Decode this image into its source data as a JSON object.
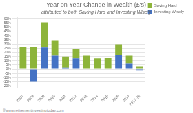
{
  "chart_data": {
    "type": "bar",
    "title": "Year on Year Change in Wealth (£'s)",
    "subtitle": "attributed to both Saving Hard and Investing Wisely",
    "categories": [
      "2007",
      "2008",
      "2009",
      "2010",
      "2011",
      "2012",
      "2013",
      "2014",
      "2015",
      "2016",
      "2017",
      "2017-75"
    ],
    "series": [
      {
        "name": "Saving Hard",
        "color": "#8db43a",
        "values": [
          27,
          27,
          30,
          18,
          13,
          11,
          16,
          13,
          14,
          13,
          9,
          3
        ]
      },
      {
        "name": "Investing Wisely",
        "color": "#4472c4",
        "values": [
          0,
          -15,
          26,
          16,
          2,
          13,
          0,
          0,
          0,
          17,
          7,
          -1
        ]
      }
    ],
    "stacked": true,
    "ylim": [
      -22,
      62
    ],
    "yticks": [
      {
        "value": -20,
        "label": "-20%"
      },
      {
        "value": -15,
        "label": "-15%"
      },
      {
        "value": -10,
        "label": "-10%"
      },
      {
        "value": -5,
        "label": "-5%"
      },
      {
        "value": 0,
        "label": "0%"
      },
      {
        "value": 5,
        "label": "5%"
      },
      {
        "value": 10,
        "label": "10%"
      },
      {
        "value": 15,
        "label": "15%"
      },
      {
        "value": 20,
        "label": "20%"
      },
      {
        "value": 25,
        "label": "25%"
      },
      {
        "value": 30,
        "label": "30%"
      },
      {
        "value": 35,
        "label": "35%"
      },
      {
        "value": 40,
        "label": "40%"
      },
      {
        "value": 45,
        "label": "45%"
      },
      {
        "value": 50,
        "label": "50%"
      },
      {
        "value": 55,
        "label": "55%"
      },
      {
        "value": 60,
        "label": "60%"
      }
    ],
    "grid": true,
    "legend": "upper right",
    "annotations": [
      "©www.retirementinvestingtoday.com"
    ]
  }
}
